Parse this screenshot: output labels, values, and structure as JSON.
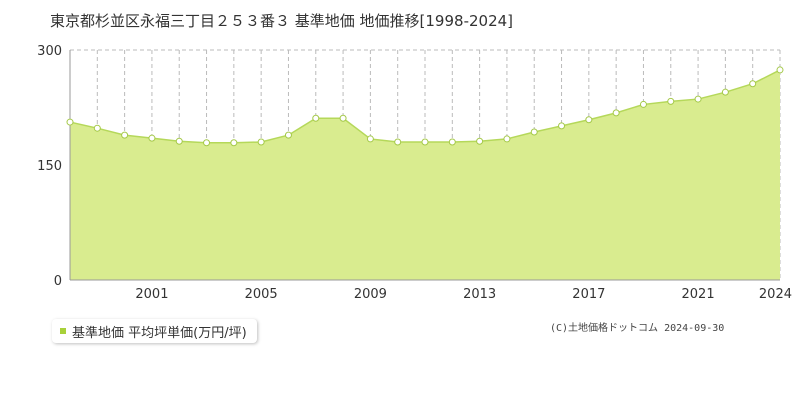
{
  "title": "東京都杉並区永福三丁目２５３番３ 基準地価 地価推移[1998-2024]",
  "legend": {
    "label": "基準地価 平均坪単価(万円/坪)"
  },
  "copyright": "(C)土地価格ドットコム 2024-09-30",
  "colors": {
    "fill": "#d9ec8f",
    "line": "#b5d85a",
    "marker_stroke": "#a5c94a",
    "legend_marker": "#a8d13a",
    "grid": "#bbbbbb",
    "axis": "#999999"
  },
  "chart_data": {
    "type": "area",
    "x": [
      1998,
      1999,
      2000,
      2001,
      2002,
      2003,
      2004,
      2005,
      2006,
      2007,
      2008,
      2009,
      2010,
      2011,
      2012,
      2013,
      2014,
      2015,
      2016,
      2017,
      2018,
      2019,
      2020,
      2021,
      2022,
      2023,
      2024
    ],
    "series": [
      {
        "values": [
          206,
          198,
          189,
          185,
          181,
          179,
          179,
          180,
          189,
          211,
          211,
          184,
          180,
          180,
          180,
          181,
          184,
          193,
          201,
          209,
          218,
          229,
          233,
          236,
          245,
          256,
          274
        ]
      }
    ],
    "x_ticks": [
      "2001",
      "2005",
      "2009",
      "2013",
      "2017",
      "2021",
      "2024"
    ],
    "y_ticks": [
      "0",
      "150",
      "300"
    ],
    "xlim": [
      1998,
      2024
    ],
    "ylim": [
      0,
      300
    ],
    "grid": true,
    "legend_position": "bottom-left"
  }
}
